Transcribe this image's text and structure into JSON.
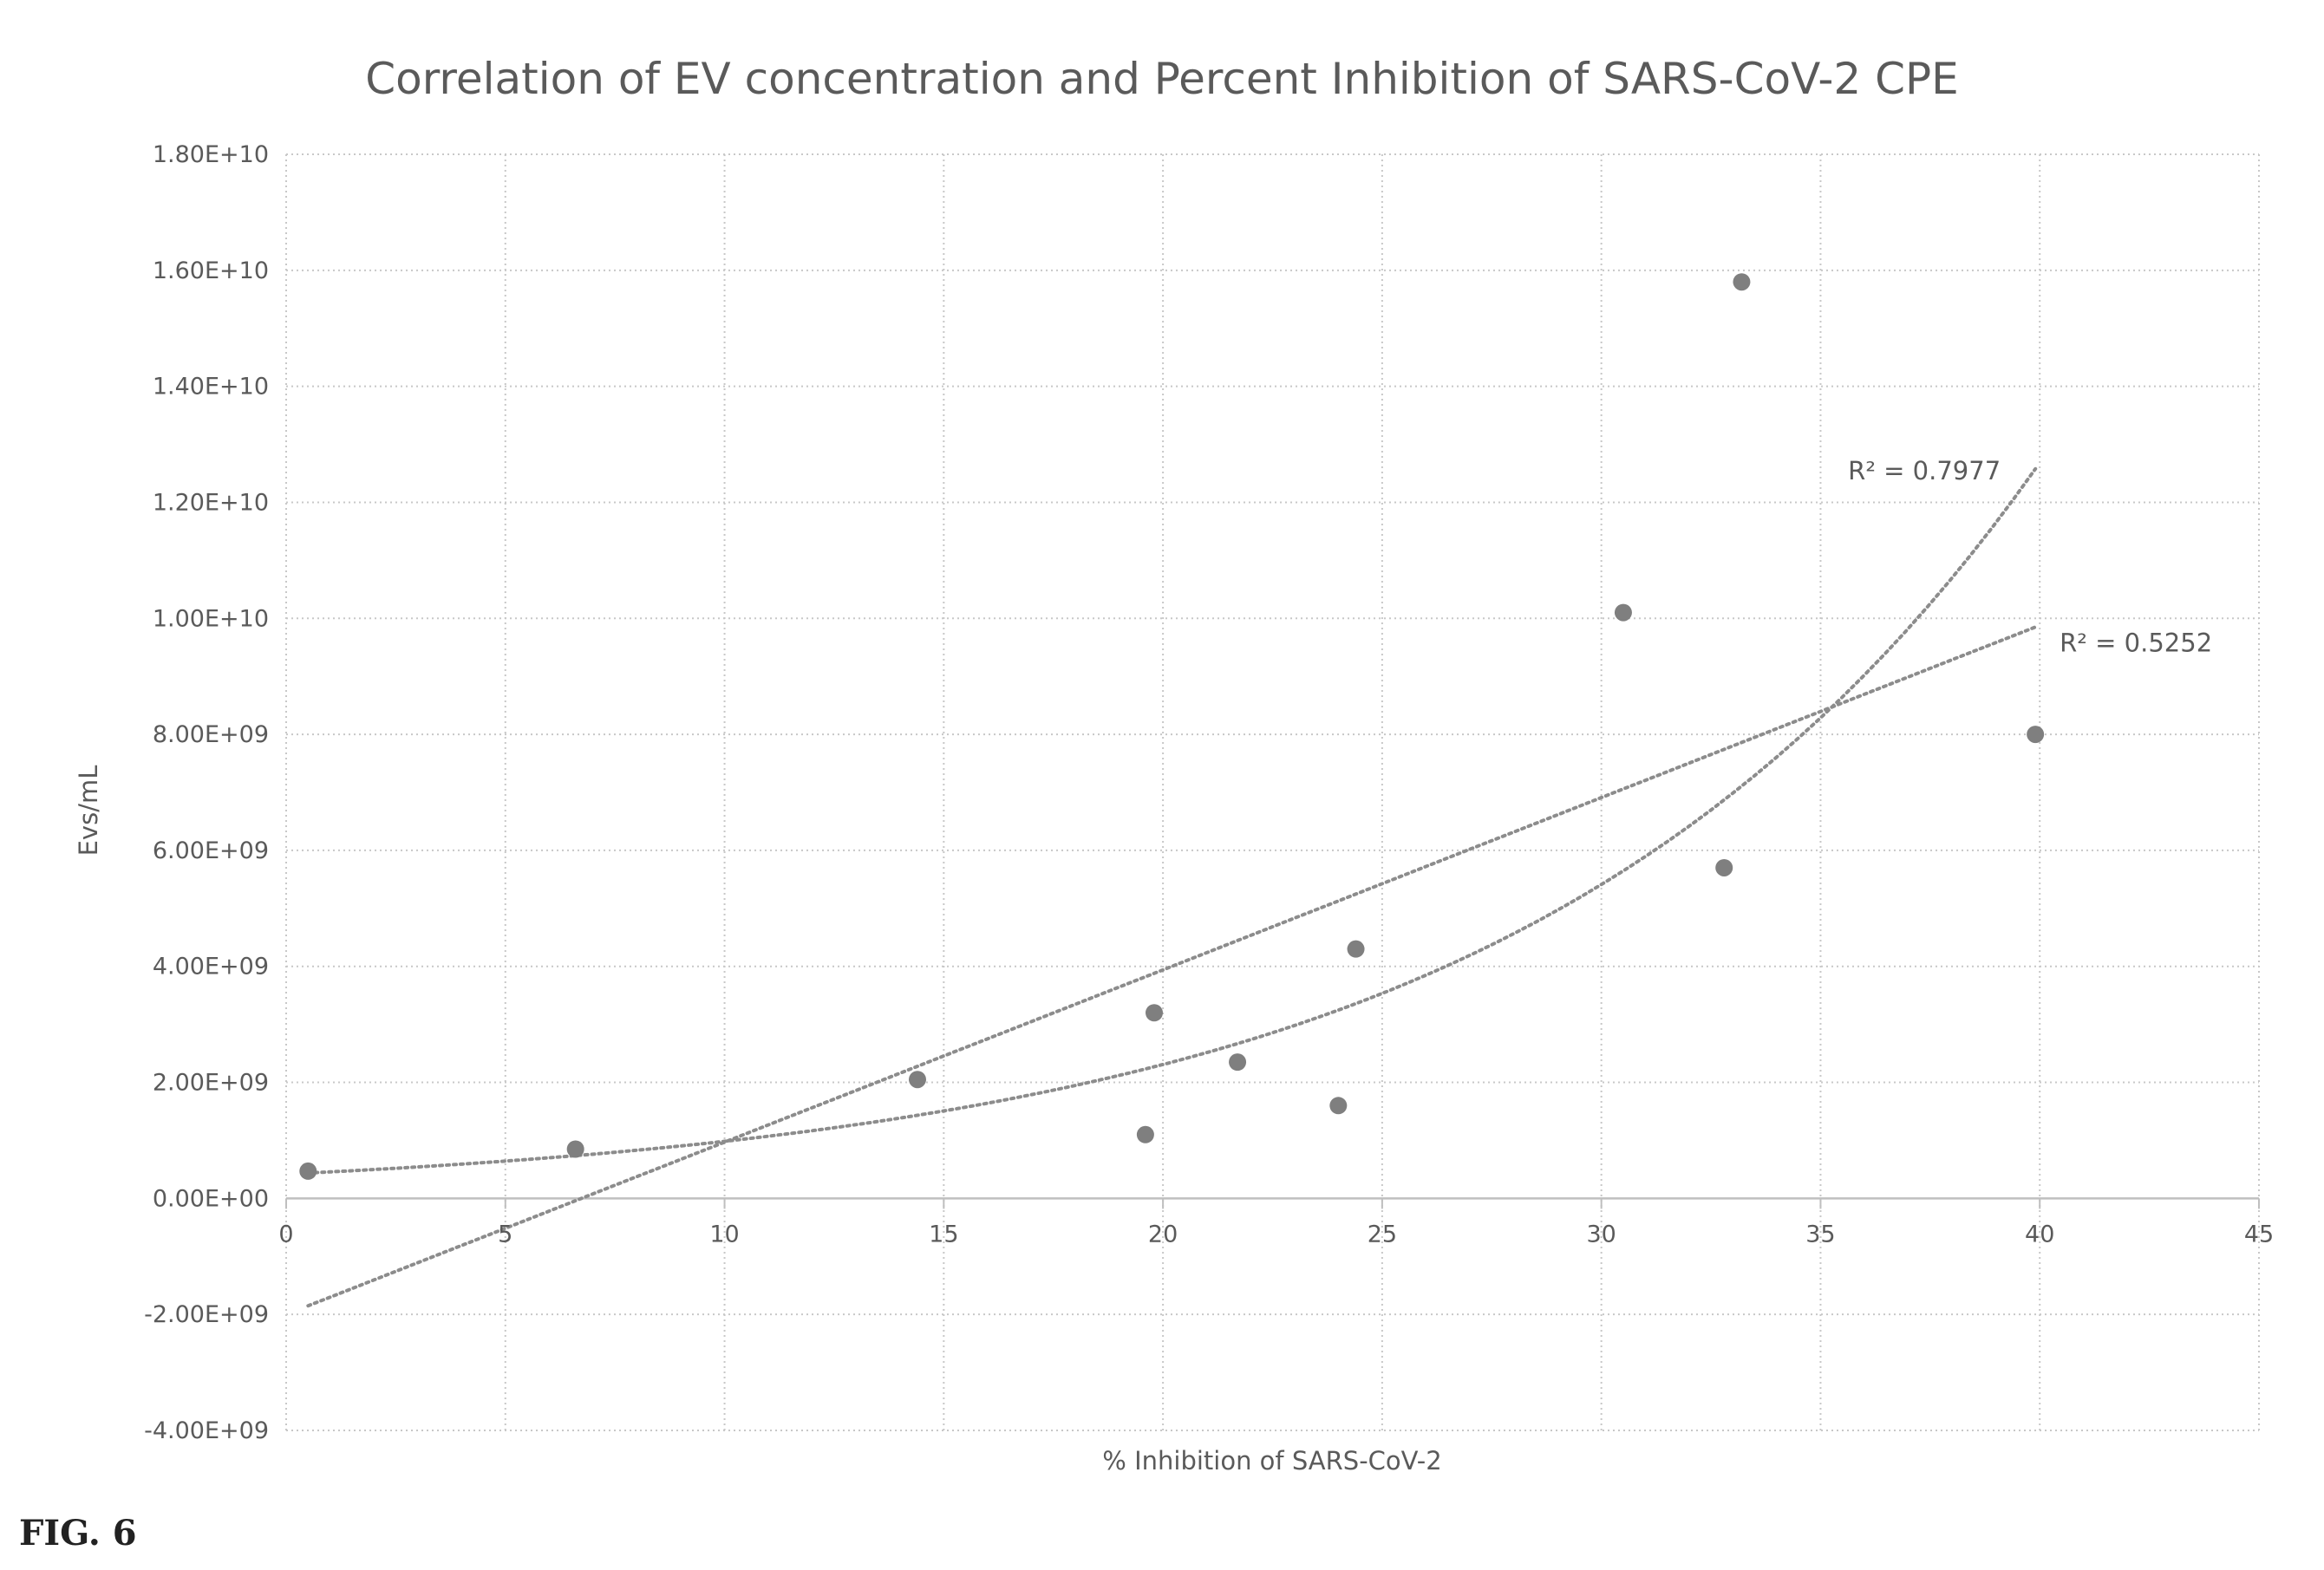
{
  "chart_data": {
    "type": "scatter",
    "title": "Correlation of EV concentration and Percent Inhibition of SARS-CoV-2 CPE",
    "xlabel": "% Inhibition of SARS-CoV-2",
    "ylabel": "Evs/mL",
    "xlim": [
      0,
      45
    ],
    "ylim": [
      -4000000000,
      18000000000
    ],
    "x_ticks": [
      0,
      5,
      10,
      15,
      20,
      25,
      30,
      35,
      40,
      45
    ],
    "x_tick_labels": [
      "0",
      "5",
      "10",
      "15",
      "20",
      "25",
      "30",
      "35",
      "40",
      "45"
    ],
    "y_ticks": [
      18000000000,
      16000000000,
      14000000000,
      12000000000,
      10000000000,
      8000000000,
      6000000000,
      4000000000,
      2000000000,
      0,
      -2000000000,
      -4000000000
    ],
    "y_tick_labels": [
      "1.80E+10",
      "1.60E+10",
      "1.40E+10",
      "1.20E+10",
      "1.00E+10",
      "8.00E+09",
      "6.00E+09",
      "4.00E+09",
      "2.00E+09",
      "0.00E+00",
      "-2.00E+09",
      "-4.00E+09"
    ],
    "grid": true,
    "series": [
      {
        "x": [
          0.5,
          6.6,
          14.4,
          19.6,
          19.8,
          21.7,
          24.0,
          24.4,
          30.5,
          32.8,
          33.2,
          39.9
        ],
        "y": [
          470000000,
          850000000,
          2050000000,
          1100000000,
          3200000000,
          2350000000,
          1600000000,
          4300000000,
          10100000000,
          5700000000,
          15800000000,
          8000000000
        ]
      }
    ],
    "trendlines": [
      {
        "kind": "linear",
        "label": "R² = 0.5252",
        "slope": 297000000,
        "intercept": -2000000000,
        "x_range": [
          0.5,
          39.9
        ]
      },
      {
        "kind": "exponential",
        "label": "R² = 0.7977",
        "a": 420000000,
        "b": 0.0852,
        "x_range": [
          0.5,
          39.9
        ]
      }
    ],
    "colors": {
      "marker": "#7f7f7f",
      "trendline": "#8c8c8c",
      "grid": "#c8c8c8",
      "axis": "#bfbfbf"
    }
  },
  "caption": "FIG. 6"
}
